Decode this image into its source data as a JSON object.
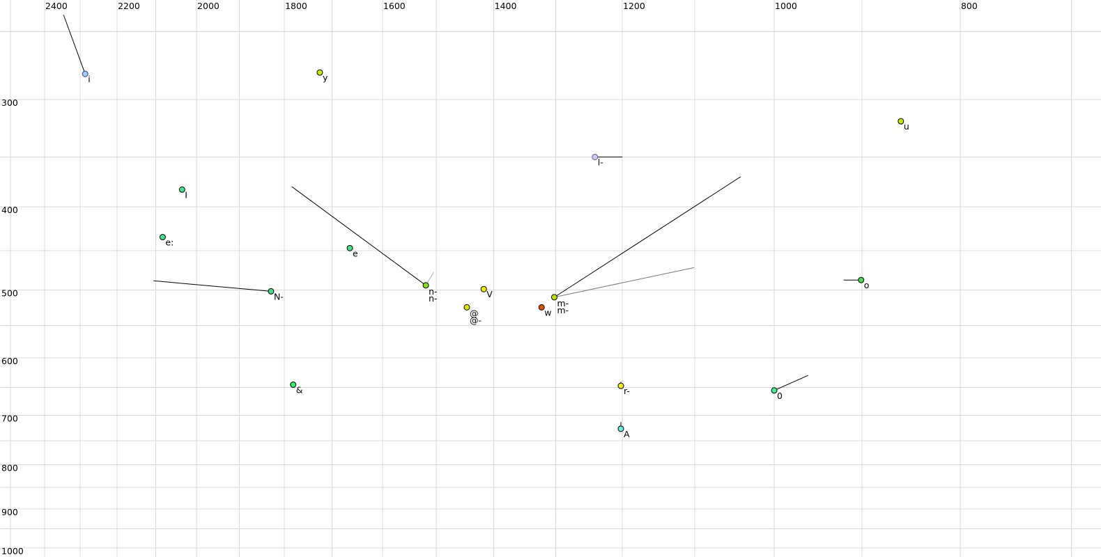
{
  "chart_data": {
    "type": "scatter",
    "title": "",
    "description": "Vowel formant plot: F2 (Hz) decreasing left-to-right along top axis, F1 (Hz) increasing downward along left axis, both log-scaled",
    "x_axis": {
      "position": "top",
      "scale": "log",
      "reversed": true,
      "tick_labels": [
        2400,
        2200,
        2000,
        1800,
        1600,
        1400,
        1200,
        1000,
        800
      ],
      "gridline_max": 2500,
      "gridline_min": 700,
      "gridlines_every_hz": 100
    },
    "y_axis": {
      "position": "left",
      "scale": "log",
      "increases": "downward",
      "tick_labels": [
        300,
        400,
        500,
        600,
        700,
        800,
        900,
        1000
      ],
      "gridline_min": 250,
      "gridline_max": 1000,
      "gridlines_every_hz": 50
    },
    "colors": {
      "background": "#ffffff",
      "gridline": "#d8d8d8",
      "tick_text": "#000000",
      "ghost_label": "#8888aa"
    },
    "points": [
      {
        "id": "i",
        "f2": 2286,
        "f1": 280,
        "fill": "#a6c8f0",
        "stroke": "#224488",
        "labels": [
          {
            "text": "i",
            "color": "#000000"
          }
        ],
        "tails": [
          {
            "f2": 2346,
            "f1": 239,
            "color": "#000000"
          }
        ]
      },
      {
        "id": "y",
        "f2": 1725,
        "f1": 279,
        "fill": "#c6e800",
        "stroke": "#000000",
        "labels": [
          {
            "text": "y",
            "color": "#000000"
          }
        ],
        "tails": []
      },
      {
        "id": "u",
        "f2": 859,
        "f1": 318,
        "fill": "#c6e800",
        "stroke": "#000000",
        "labels": [
          {
            "text": "u",
            "color": "#000000"
          }
        ],
        "tails": []
      },
      {
        "id": "l-",
        "f2": 1240,
        "f1": 350,
        "fill": "#ccccee",
        "stroke": "#555599",
        "labels": [
          {
            "text": "l-",
            "color": "#000000"
          }
        ],
        "tails": [
          {
            "f2": 1200,
            "f1": 350,
            "color": "#000000"
          }
        ]
      },
      {
        "id": "I",
        "f2": 2035,
        "f1": 382,
        "fill": "#44dd88",
        "stroke": "#000000",
        "labels": [
          {
            "text": "I",
            "color": "#000000"
          }
        ],
        "tails": []
      },
      {
        "id": "e:",
        "f2": 2083,
        "f1": 434,
        "fill": "#44dd88",
        "stroke": "#000000",
        "labels": [
          {
            "text": "e:",
            "color": "#000000"
          }
        ],
        "tails": []
      },
      {
        "id": "e",
        "f2": 1664,
        "f1": 447,
        "fill": "#44dd88",
        "stroke": "#000000",
        "labels": [
          {
            "text": "e",
            "color": "#000000"
          }
        ],
        "tails": []
      },
      {
        "id": "N-",
        "f2": 1829,
        "f1": 502,
        "fill": "#44dd88",
        "stroke": "#000000",
        "labels": [
          {
            "text": "N-",
            "color": "#000000"
          }
        ],
        "tails": [
          {
            "f2": 2106,
            "f1": 488,
            "color": "#000000"
          }
        ]
      },
      {
        "id": "n-",
        "f2": 1519,
        "f1": 494,
        "fill": "#8ade11",
        "stroke": "#000000",
        "labels": [
          {
            "text": "n-",
            "color": "#8888aa"
          },
          {
            "text": "n-",
            "color": "#000000"
          }
        ],
        "tails": [
          {
            "f2": 1784,
            "f1": 379,
            "color": "#000000"
          },
          {
            "f2": 1505,
            "f1": 477,
            "color": "#aaaaaa"
          }
        ]
      },
      {
        "id": "V",
        "f2": 1417,
        "f1": 499,
        "fill": "#eeee00",
        "stroke": "#000000",
        "labels": [
          {
            "text": "V",
            "color": "#000000"
          }
        ],
        "tails": []
      },
      {
        "id": "@",
        "f2": 1446,
        "f1": 524,
        "fill": "#dde800",
        "stroke": "#000000",
        "labels": [
          {
            "text": "@",
            "color": "#000000"
          },
          {
            "text": "@-",
            "color": "#000000"
          }
        ],
        "tails": []
      },
      {
        "id": "w",
        "f2": 1322,
        "f1": 524,
        "fill": "#dd5500",
        "stroke": "#000000",
        "labels": [
          {
            "text": "w",
            "color": "#000000"
          }
        ],
        "tails": []
      },
      {
        "id": "m-",
        "f2": 1302,
        "f1": 510,
        "fill": "#bbdd00",
        "stroke": "#000000",
        "labels": [
          {
            "text": "m-",
            "color": "#8888aa"
          },
          {
            "text": "m-",
            "color": "#000000"
          }
        ],
        "tails": [
          {
            "f2": 1041,
            "f1": 369,
            "color": "#000000"
          },
          {
            "f2": 1101,
            "f1": 471,
            "color": "#777777"
          }
        ]
      },
      {
        "id": "&",
        "f2": 1781,
        "f1": 645,
        "fill": "#33ee66",
        "stroke": "#000000",
        "labels": [
          {
            "text": "&",
            "color": "#000000"
          }
        ],
        "tails": []
      },
      {
        "id": "r-",
        "f2": 1202,
        "f1": 647,
        "fill": "#eeee22",
        "stroke": "#000000",
        "labels": [
          {
            "text": "r-",
            "color": "#000000"
          }
        ],
        "tails": [
          {
            "f2": 1202,
            "f1": 640,
            "color": "#000000"
          }
        ]
      },
      {
        "id": "0",
        "f2": 1000,
        "f1": 655,
        "fill": "#44ee99",
        "stroke": "#000000",
        "labels": [
          {
            "text": "0",
            "color": "#000000"
          }
        ],
        "tails": [
          {
            "f2": 960,
            "f1": 629,
            "color": "#000000"
          }
        ]
      },
      {
        "id": "A",
        "f2": 1202,
        "f1": 726,
        "fill": "#66eedd",
        "stroke": "#000000",
        "labels": [
          {
            "text": "A",
            "color": "#000000"
          }
        ],
        "tails": [
          {
            "f2": 1202,
            "f1": 713,
            "color": "#000000"
          }
        ]
      },
      {
        "id": "o",
        "f2": 901,
        "f1": 487,
        "fill": "#44dd55",
        "stroke": "#000000",
        "labels": [
          {
            "text": "o",
            "color": "#000000"
          }
        ],
        "tails": [
          {
            "f2": 920,
            "f1": 487,
            "color": "#000000"
          }
        ]
      }
    ]
  }
}
